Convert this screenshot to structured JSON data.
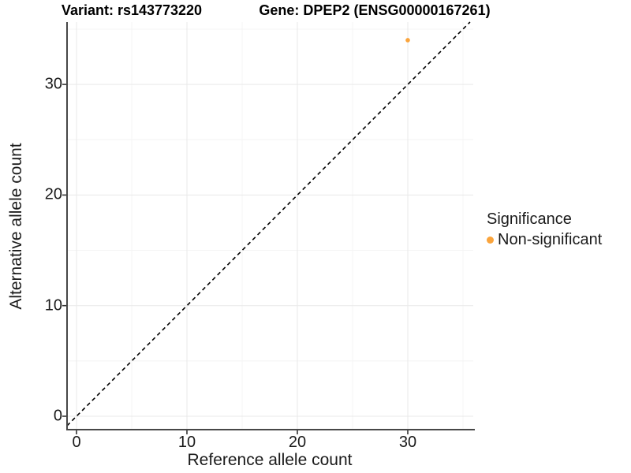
{
  "titles": {
    "left": "Variant: rs143773220",
    "right": "Gene: DPEP2 (ENSG00000167261)"
  },
  "x_axis": {
    "title": "Reference allele count",
    "tick_labels": [
      "0",
      "10",
      "20",
      "30"
    ]
  },
  "y_axis": {
    "title": "Alternative allele count",
    "tick_labels": [
      "0",
      "10",
      "20",
      "30"
    ]
  },
  "legend": {
    "title": "Significance",
    "items": [
      {
        "label": "Non-significant",
        "color": "#FAA43C"
      }
    ]
  },
  "chart_data": {
    "type": "scatter",
    "title": "Variant: rs143773220 | Gene: DPEP2 (ENSG00000167261)",
    "xlabel": "Reference allele count",
    "ylabel": "Alternative allele count",
    "xlim": [
      -1,
      36
    ],
    "ylim": [
      -1.5,
      35.6
    ],
    "x_ticks": [
      0,
      10,
      20,
      30
    ],
    "y_ticks": [
      0,
      10,
      20,
      30
    ],
    "grid": "major and minor gridlines every 5 units, light gray",
    "legend_position": "right",
    "series": [
      {
        "name": "Non-significant",
        "color": "#FAA43C",
        "points": [
          {
            "x": 30,
            "y": 34
          }
        ]
      }
    ],
    "reference_line": {
      "type": "identity",
      "slope": 1,
      "intercept": 0,
      "style": "dashed",
      "color": "#000000"
    }
  },
  "colors": {
    "background": "#FFFFFF",
    "axis_line": "#474747",
    "tick_mark": "#333333",
    "grid_major": "#E9E9E9",
    "grid_minor": "#F4F4F4",
    "text": "#1A1A1A",
    "point": "#FAA43C"
  }
}
